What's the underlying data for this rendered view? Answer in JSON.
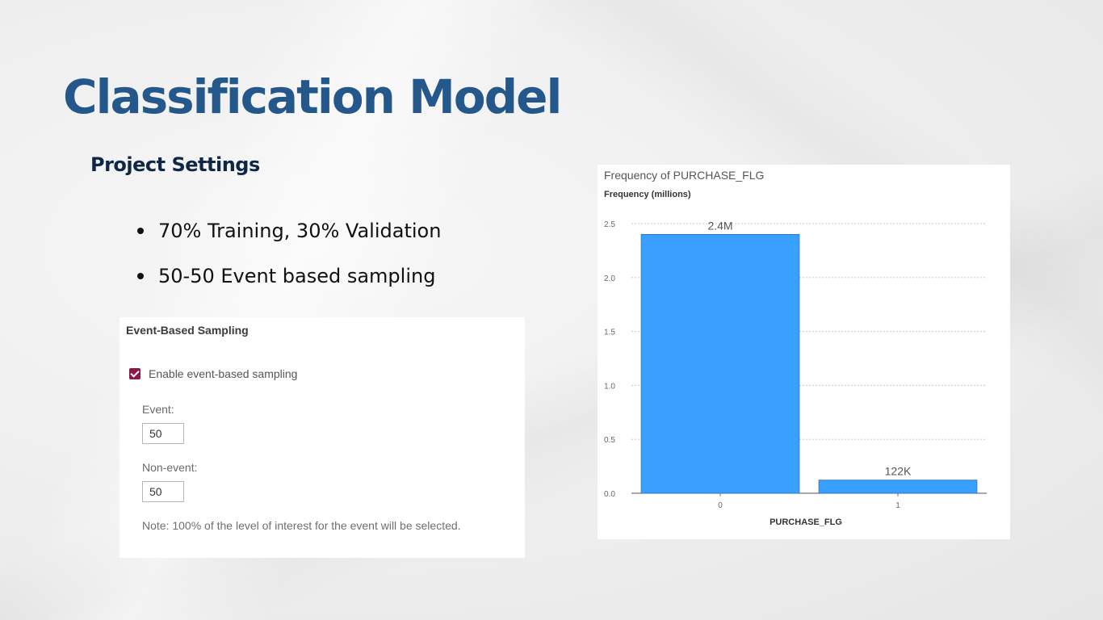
{
  "slide": {
    "title": "Classification Model",
    "subtitle": "Project Settings",
    "bullets": [
      "70% Training, 30% Validation",
      "50-50 Event based sampling"
    ]
  },
  "sampling_panel": {
    "title": "Event-Based Sampling",
    "checkbox_label": "Enable event-based sampling",
    "checkbox_checked": true,
    "event_label": "Event:",
    "event_value": "50",
    "nonevent_label": "Non-event:",
    "nonevent_value": "50",
    "note": "Note: 100% of the level of interest for the event will be selected."
  },
  "colors": {
    "title": "#25588a",
    "subtitle": "#0f2647",
    "checkbox": "#8b1a47",
    "bar": "#3aa0ff"
  },
  "chart_data": {
    "type": "bar",
    "title": "Frequency of PURCHASE_FLG",
    "ylabel": "Frequency (millions)",
    "xlabel": "PURCHASE_FLG",
    "categories": [
      "0",
      "1"
    ],
    "values": [
      2.4,
      0.122
    ],
    "data_labels": [
      "2.4M",
      "122K"
    ],
    "ylim": [
      0,
      2.5
    ],
    "yticks": [
      0,
      0.5,
      1.0,
      1.5,
      2.0,
      2.5
    ],
    "ytick_labels": [
      "0.0",
      "0.5",
      "1.0",
      "1.5",
      "2.0",
      "2.5"
    ],
    "grid": true
  }
}
